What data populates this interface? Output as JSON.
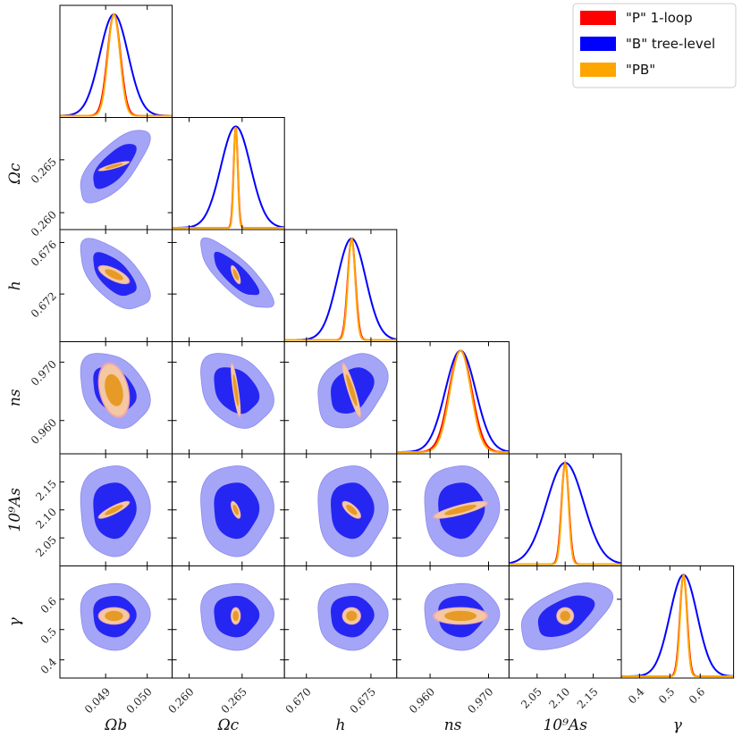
{
  "chart_data": {
    "type": "corner-plot",
    "parameters": [
      {
        "key": "omega_b",
        "label": "Ωb",
        "range": [
          0.0479,
          0.0506
        ],
        "ticks": [
          {
            "v": 0.049,
            "t": "0.049"
          },
          {
            "v": 0.05,
            "t": "0.050"
          }
        ],
        "mean": 0.0492,
        "sigma_b": 0.00034,
        "sigma_p": 0.000145
      },
      {
        "key": "omega_c",
        "label": "Ωc",
        "range": [
          0.2584,
          0.269
        ],
        "ticks": [
          {
            "v": 0.26,
            "t": "0.260"
          },
          {
            "v": 0.265,
            "t": "0.265"
          }
        ],
        "mean": 0.2644,
        "sigma_b": 0.0014,
        "sigma_p": 0.00018
      },
      {
        "key": "h",
        "label": "h",
        "range": [
          0.6683,
          0.677
        ],
        "ticks": [
          {
            "v": 0.67,
            "t": "0.670"
          },
          {
            "v": 0.672,
            "t": "0.672"
          },
          {
            "v": 0.675,
            "t": "0.675"
          },
          {
            "v": 0.676,
            "t": "0.676"
          }
        ],
        "mean": 0.6735,
        "sigma_b": 0.0011,
        "sigma_p": 0.00028
      },
      {
        "key": "n_s",
        "label": "ns",
        "range": [
          0.9543,
          0.9735
        ],
        "ticks": [
          {
            "v": 0.96,
            "t": "0.960"
          },
          {
            "v": 0.97,
            "t": "0.970"
          }
        ],
        "mean": 0.9652,
        "sigma_b": 0.0026,
        "sigma_p": 0.0018
      },
      {
        "key": "1e9As",
        "label": "10⁹As",
        "range": [
          2.0,
          2.2
        ],
        "ticks": [
          {
            "v": 2.05,
            "t": "2.05"
          },
          {
            "v": 2.1,
            "t": "2.10"
          },
          {
            "v": 2.15,
            "t": "2.15"
          }
        ],
        "mean": 2.1,
        "sigma_b": 0.033,
        "sigma_p": 0.006
      },
      {
        "key": "gamma",
        "label": "γ",
        "range": [
          0.34,
          0.71
        ],
        "ticks": [
          {
            "v": 0.4,
            "t": "0.4"
          },
          {
            "v": 0.5,
            "t": "0.5"
          },
          {
            "v": 0.6,
            "t": "0.6"
          }
        ],
        "mean": 0.545,
        "sigma_b": 0.045,
        "sigma_p": 0.011
      }
    ],
    "row_tick_exceptions": {
      "h": [
        0.672,
        0.676
      ],
      "xh": [
        0.67,
        0.675
      ]
    },
    "series": [
      {
        "name": "\"P\" 1-loop",
        "color": "#ff0000"
      },
      {
        "name": "\"B\" tree-level",
        "color": "#0000ff"
      },
      {
        "name": "\"PB\"",
        "color": "#ffa500"
      }
    ],
    "correlations_b": [
      [
        1,
        0.7,
        -0.6,
        -0.3,
        0.0,
        0.0
      ],
      [
        0.7,
        1,
        -0.8,
        -0.3,
        0.0,
        0.0
      ],
      [
        -0.6,
        -0.8,
        1,
        0.3,
        0.0,
        0.0
      ],
      [
        -0.3,
        -0.3,
        0.3,
        1,
        0.0,
        0.0
      ],
      [
        0.0,
        0.0,
        0.0,
        0.0,
        1,
        0.5
      ],
      [
        0.0,
        0.0,
        0.0,
        0.0,
        0.5,
        1
      ]
    ],
    "correlations_p": [
      [
        1,
        0.85,
        -0.7,
        -0.3,
        0.85,
        0.0
      ],
      [
        0.85,
        1,
        -0.7,
        -0.8,
        -0.6,
        0.0
      ],
      [
        -0.7,
        -0.7,
        1,
        -0.9,
        -0.7,
        0.0
      ],
      [
        -0.3,
        -0.8,
        -0.9,
        1,
        0.8,
        0.0
      ],
      [
        0.85,
        -0.6,
        -0.7,
        0.8,
        1,
        0.0
      ],
      [
        0.0,
        0.0,
        0.0,
        0.0,
        0.0,
        1
      ]
    ],
    "contour_levels": [
      "68%",
      "95%"
    ],
    "legend_position": "top-right"
  }
}
